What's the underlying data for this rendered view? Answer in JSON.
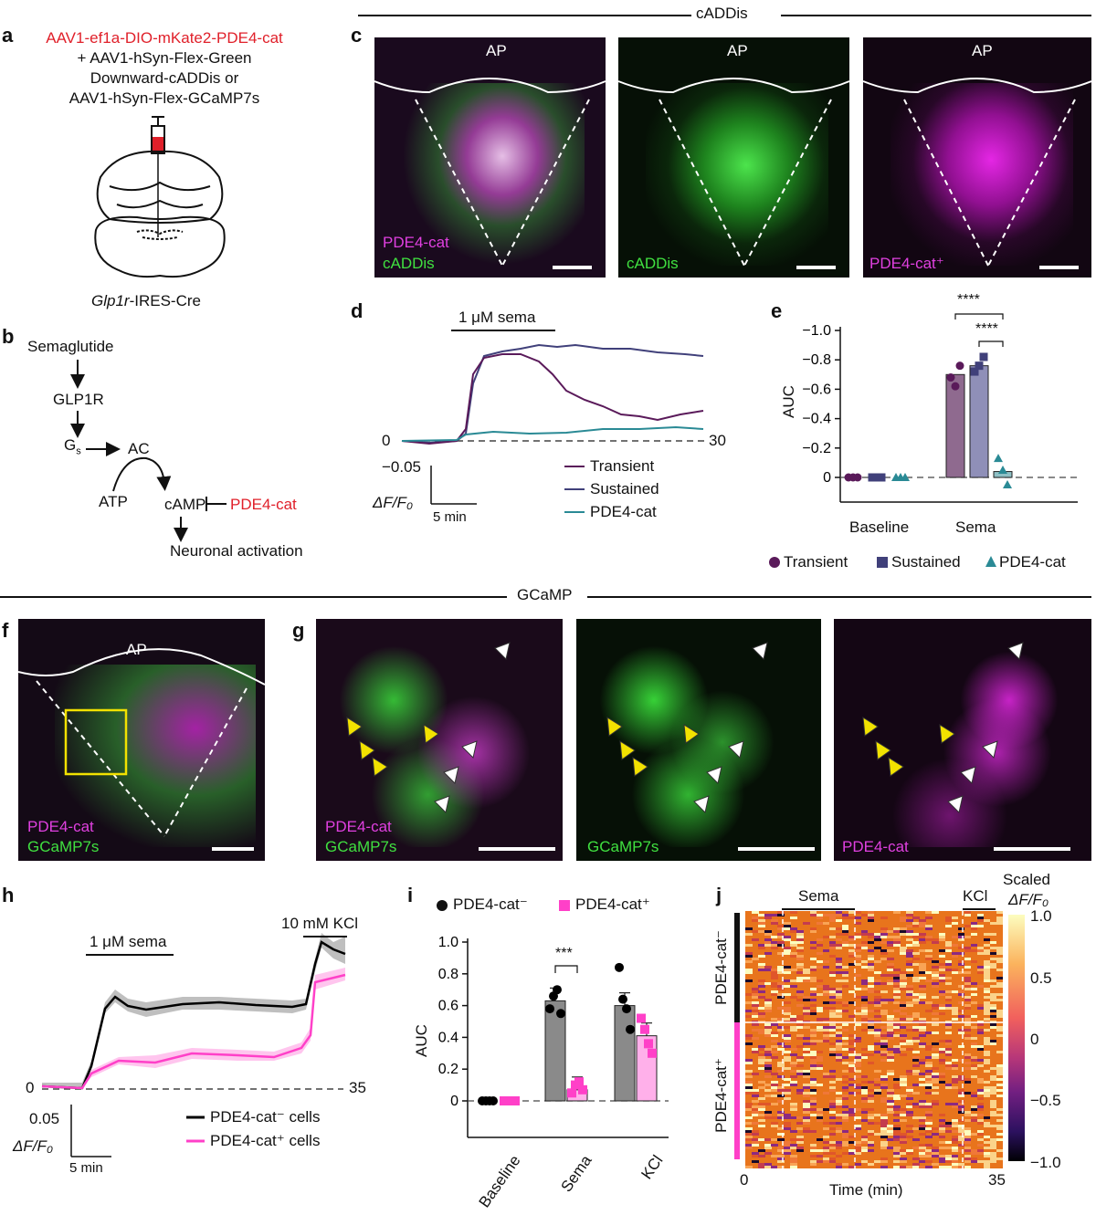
{
  "panel_labels": [
    "a",
    "b",
    "c",
    "d",
    "e",
    "f",
    "g",
    "h",
    "i",
    "j"
  ],
  "section_labels": {
    "caddis": "cADDis",
    "gcamp": "GCaMP"
  },
  "colors": {
    "pde4cat_red": "#e0202a",
    "magenta": "#e020e0",
    "green": "#30e030",
    "transient": "#5a1a5a",
    "sustained": "#40407a",
    "pde4cat_teal": "#2a8a95",
    "black_cells": "#000000",
    "pink_cells": "#ff40c8",
    "arrow_yellow": "#f2e200",
    "arrow_white": "#ffffff"
  },
  "panel_a": {
    "line1": "AAV1-ef1a-DIO-mKate2-PDE4-cat",
    "line2": "+ AAV1-hSyn-Flex-Green",
    "line3": "Downward-cADDis or",
    "line4": "AAV1-hSyn-Flex-GCaMP7s",
    "mouse_line_italic": "Glp1r",
    "mouse_line_rest": "-IRES-Cre"
  },
  "panel_b": {
    "semaglutide": "Semaglutide",
    "glp1r": "GLP1R",
    "gs_main": "G",
    "gs_sub": "s",
    "ac": "AC",
    "atp": "ATP",
    "camp": "cAMP",
    "pde4cat": "PDE4-cat",
    "activation": "Neuronal activation"
  },
  "panel_c": {
    "images": [
      {
        "ap": "AP",
        "label1": "PDE4-cat",
        "label2": "cADDis"
      },
      {
        "ap": "AP",
        "label1": "",
        "label2": "cADDis"
      },
      {
        "ap": "AP",
        "label1": "",
        "label2": "PDE4-cat⁺"
      }
    ]
  },
  "panel_d": {
    "stim_label": "1 μM sema",
    "y_zero": "0",
    "x_end": "30",
    "scale_y": "−0.05",
    "scale_y_axis": "ΔF/F₀",
    "scale_x": "5 min",
    "legend": [
      "Transient",
      "Sustained",
      "PDE4-cat"
    ]
  },
  "panel_e": {
    "significance": [
      "****",
      "****"
    ],
    "legend": [
      "Transient",
      "Sustained",
      "PDE4-cat"
    ],
    "chart_data": {
      "type": "bar",
      "ylabel": "AUC",
      "yticks": [
        "−1.0",
        "−0.8",
        "−0.6",
        "−0.4",
        "−0.2",
        "0"
      ],
      "ylim": [
        0,
        -1.0
      ],
      "categories": [
        "Baseline",
        "Sema"
      ],
      "series": [
        {
          "name": "Transient",
          "values": [
            0,
            -0.7
          ],
          "points": [
            [
              0,
              0,
              0
            ],
            [
              -0.68,
              -0.62,
              -0.76
            ]
          ]
        },
        {
          "name": "Sustained",
          "values": [
            0,
            -0.76
          ],
          "points": [
            [
              0,
              0,
              0
            ],
            [
              -0.72,
              -0.76,
              -0.82
            ]
          ]
        },
        {
          "name": "PDE4-cat",
          "values": [
            0,
            -0.04
          ],
          "points": [
            [
              0,
              0,
              0
            ],
            [
              -0.13,
              -0.05,
              0.05
            ]
          ]
        }
      ]
    }
  },
  "panel_f": {
    "ap": "AP",
    "label1": "PDE4-cat",
    "label2": "GCaMP7s"
  },
  "panel_g": {
    "images": [
      {
        "label1": "PDE4-cat",
        "label2": "GCaMP7s"
      },
      {
        "label1": "",
        "label2": "GCaMP7s"
      },
      {
        "label1": "",
        "label2": "PDE4-cat"
      }
    ]
  },
  "panel_h": {
    "stim1": "1 μM sema",
    "stim2": "10 mM KCl",
    "y_zero": "0",
    "x_end": "35",
    "scale_y": "0.05",
    "scale_y_axis": "ΔF/F₀",
    "scale_x": "5 min",
    "legend": [
      "PDE4-cat⁻ cells",
      "PDE4-cat⁺ cells"
    ]
  },
  "panel_i": {
    "legend": [
      "PDE4-cat⁻",
      "PDE4-cat⁺"
    ],
    "significance": "***",
    "chart_data": {
      "type": "bar",
      "ylabel": "AUC",
      "yticks": [
        "0",
        "0.2",
        "0.4",
        "0.6",
        "0.8",
        "1.0"
      ],
      "ylim": [
        0,
        1.0
      ],
      "categories": [
        "Baseline",
        "Sema",
        "KCl"
      ],
      "series": [
        {
          "name": "PDE4-cat⁻",
          "values": [
            0,
            0.63,
            0.6
          ],
          "points": [
            [
              0,
              0,
              0,
              0
            ],
            [
              0.58,
              0.66,
              0.7,
              0.55
            ],
            [
              0.84,
              0.64,
              0.58,
              0.45
            ]
          ]
        },
        {
          "name": "PDE4-cat⁺",
          "values": [
            0,
            0.07,
            0.41
          ],
          "points": [
            [
              0,
              0,
              0,
              0
            ],
            [
              0.05,
              0.1,
              0.12,
              0.07
            ],
            [
              0.52,
              0.45,
              0.36,
              0.3
            ]
          ]
        }
      ]
    }
  },
  "panel_j": {
    "sema": "Sema",
    "kcl": "KCl",
    "row_label_neg": "PDE4-cat⁻",
    "row_label_pos": "PDE4-cat⁺",
    "x_start": "0",
    "x_end": "35",
    "xlabel": "Time (min)",
    "cbar_title1": "Scaled",
    "cbar_title2": "ΔF/F₀",
    "cbar_ticks": [
      "1.0",
      "0.5",
      "0",
      "−0.5",
      "−1.0"
    ]
  }
}
